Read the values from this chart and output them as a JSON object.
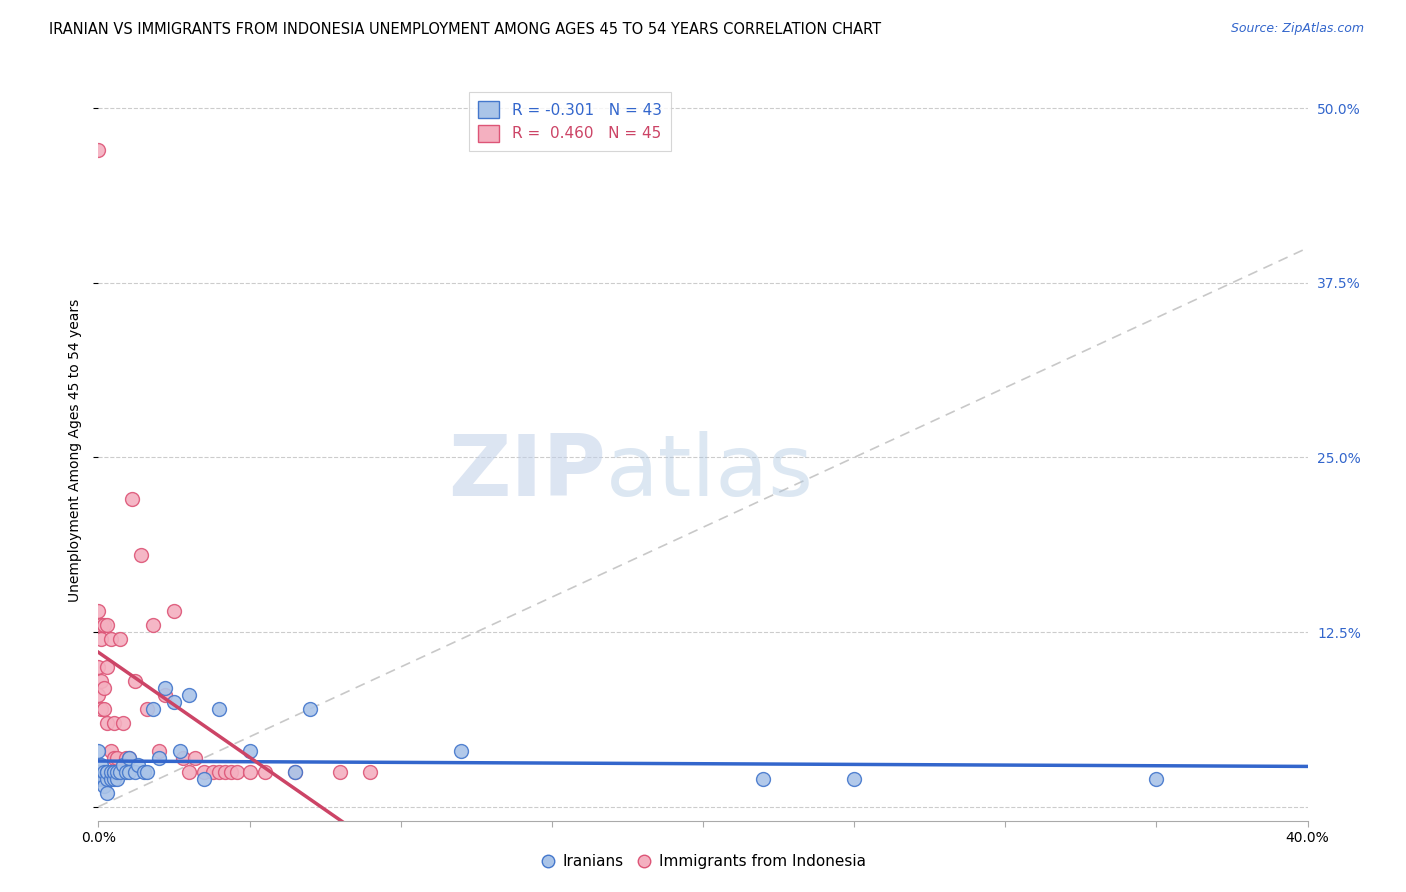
{
  "title": "IRANIAN VS IMMIGRANTS FROM INDONESIA UNEMPLOYMENT AMONG AGES 45 TO 54 YEARS CORRELATION CHART",
  "source": "Source: ZipAtlas.com",
  "ylabel": "Unemployment Among Ages 45 to 54 years",
  "xlim": [
    0.0,
    0.4
  ],
  "ylim": [
    -0.01,
    0.52
  ],
  "yticks_right": [
    0.0,
    0.125,
    0.25,
    0.375,
    0.5
  ],
  "yticklabels_right": [
    "",
    "12.5%",
    "25.0%",
    "37.5%",
    "50.0%"
  ],
  "grid_color": "#cccccc",
  "background_color": "#ffffff",
  "watermark_zip": "ZIP",
  "watermark_atlas": "atlas",
  "legend_label1": "R = -0.301   N = 43",
  "legend_label2": "R =  0.460   N = 45",
  "iranians_color": "#aac4e8",
  "indonesians_color": "#f4b0c0",
  "iranians_edge_color": "#4477cc",
  "indonesians_edge_color": "#dd5577",
  "iranians_line_color": "#3366cc",
  "indonesians_line_color": "#cc4466",
  "iranians_x": [
    0.0,
    0.0,
    0.0,
    0.001,
    0.001,
    0.002,
    0.002,
    0.002,
    0.003,
    0.003,
    0.003,
    0.003,
    0.004,
    0.004,
    0.005,
    0.005,
    0.005,
    0.006,
    0.006,
    0.007,
    0.008,
    0.009,
    0.01,
    0.01,
    0.012,
    0.013,
    0.015,
    0.016,
    0.018,
    0.02,
    0.022,
    0.025,
    0.027,
    0.03,
    0.035,
    0.04,
    0.05,
    0.065,
    0.07,
    0.12,
    0.22,
    0.25,
    0.35
  ],
  "iranians_y": [
    0.04,
    0.025,
    0.02,
    0.03,
    0.02,
    0.02,
    0.025,
    0.015,
    0.025,
    0.02,
    0.025,
    0.01,
    0.02,
    0.025,
    0.025,
    0.02,
    0.025,
    0.02,
    0.025,
    0.025,
    0.03,
    0.025,
    0.025,
    0.035,
    0.025,
    0.03,
    0.025,
    0.025,
    0.07,
    0.035,
    0.085,
    0.075,
    0.04,
    0.08,
    0.02,
    0.07,
    0.04,
    0.025,
    0.07,
    0.04,
    0.02,
    0.02,
    0.02
  ],
  "indonesians_x": [
    0.0,
    0.0,
    0.0,
    0.0,
    0.001,
    0.001,
    0.001,
    0.001,
    0.002,
    0.002,
    0.002,
    0.003,
    0.003,
    0.003,
    0.004,
    0.004,
    0.005,
    0.005,
    0.006,
    0.007,
    0.008,
    0.009,
    0.01,
    0.011,
    0.012,
    0.014,
    0.016,
    0.018,
    0.02,
    0.022,
    0.025,
    0.028,
    0.03,
    0.032,
    0.035,
    0.038,
    0.04,
    0.042,
    0.044,
    0.046,
    0.05,
    0.055,
    0.065,
    0.08,
    0.09
  ],
  "indonesians_y": [
    0.47,
    0.14,
    0.1,
    0.08,
    0.13,
    0.12,
    0.09,
    0.07,
    0.13,
    0.085,
    0.07,
    0.13,
    0.1,
    0.06,
    0.12,
    0.04,
    0.06,
    0.035,
    0.035,
    0.12,
    0.06,
    0.035,
    0.035,
    0.22,
    0.09,
    0.18,
    0.07,
    0.13,
    0.04,
    0.08,
    0.14,
    0.035,
    0.025,
    0.035,
    0.025,
    0.025,
    0.025,
    0.025,
    0.025,
    0.025,
    0.025,
    0.025,
    0.025,
    0.025,
    0.025
  ],
  "marker_size": 100,
  "title_fontsize": 10.5,
  "axis_label_fontsize": 10,
  "tick_fontsize": 10,
  "legend_fontsize": 11,
  "source_text": "Source: ZipAtlas.com"
}
